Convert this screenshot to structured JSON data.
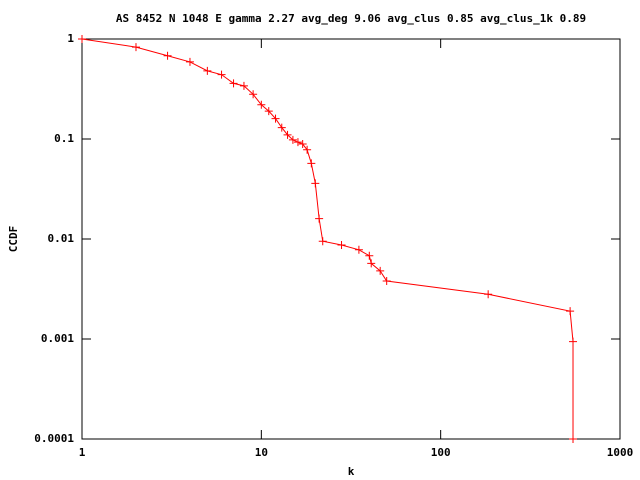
{
  "chart_data": {
    "type": "line",
    "title": "AS 8452 N 1048 E gamma 2.27 avg_deg 9.06 avg_clus 0.85 avg_clus_1k 0.89",
    "x_label": "k",
    "y_label": "CCDF",
    "x": [
      1,
      2,
      3,
      4,
      5,
      6,
      7,
      8,
      9,
      10,
      11,
      12,
      13,
      14,
      15,
      16,
      17,
      18,
      19,
      20,
      21,
      22,
      28,
      35,
      40,
      41,
      46,
      50,
      184,
      527,
      547,
      547
    ],
    "values": [
      1,
      0.83,
      0.68,
      0.59,
      0.48,
      0.44,
      0.36,
      0.34,
      0.28,
      0.22,
      0.19,
      0.16,
      0.13,
      0.11,
      0.098,
      0.093,
      0.089,
      0.078,
      0.057,
      0.036,
      0.016,
      0.0095,
      0.0087,
      0.0078,
      0.0068,
      0.0057,
      0.0048,
      0.0038,
      0.0028,
      0.0019,
      0.00094,
      0.0001
    ],
    "color": "#ff0000",
    "xlim": [
      1,
      1000
    ],
    "ylim": [
      0.0001,
      1
    ],
    "xticks": [
      1,
      10,
      100,
      1000
    ],
    "yticks": [
      1,
      0.1,
      0.01,
      0.001,
      0.0001
    ],
    "xscale": "log",
    "yscale": "log"
  }
}
